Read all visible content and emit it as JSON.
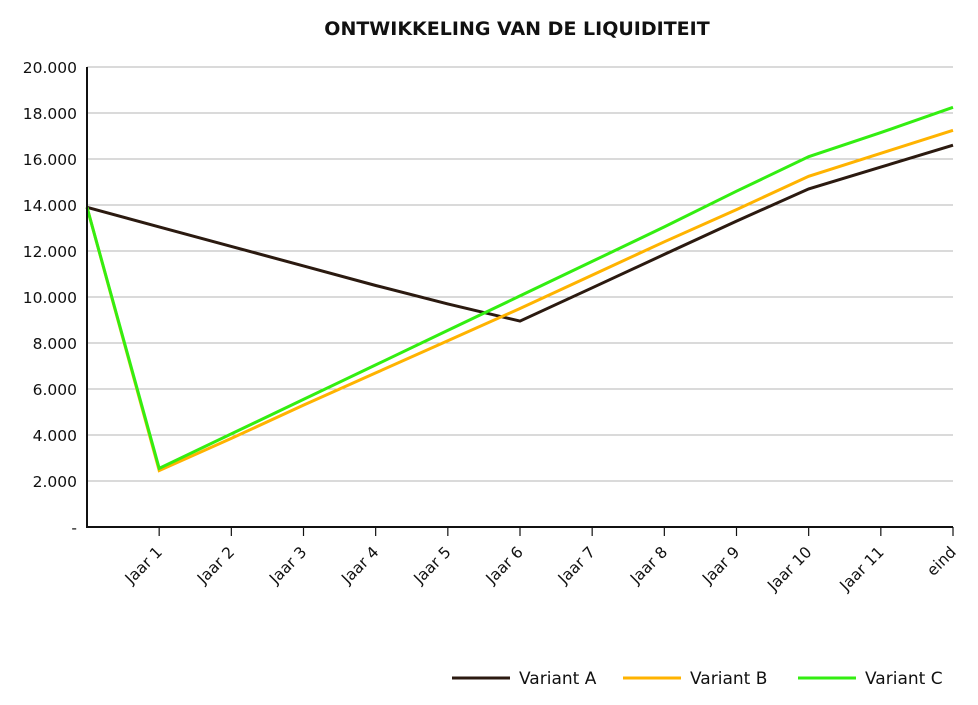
{
  "chart_data": {
    "type": "line",
    "title": "ONTWIKKELING VAN DE LIQUIDITEIT",
    "xlabel": "",
    "ylabel": "",
    "categories": [
      "",
      "Jaar 1",
      "Jaar 2",
      "Jaar 3",
      "Jaar 4",
      "Jaar 5",
      "Jaar 6",
      "Jaar 7",
      "Jaar 8",
      "Jaar 9",
      "Jaar 10",
      "Jaar 11",
      "eind"
    ],
    "ylim": [
      0,
      20000
    ],
    "yticks": [
      0,
      2000,
      4000,
      6000,
      8000,
      10000,
      12000,
      14000,
      16000,
      18000,
      20000
    ],
    "ytick_labels": [
      "-",
      "2.000",
      "4.000",
      "6.000",
      "8.000",
      "10.000",
      "12.000",
      "14.000",
      "16.000",
      "18.000",
      "20.000"
    ],
    "grid": true,
    "legend_position": "bottom-right",
    "series": [
      {
        "name": "Variant A",
        "color": "#2b1a10",
        "values": [
          13900,
          13050,
          12200,
          11350,
          10500,
          9700,
          8950,
          10400,
          11850,
          13300,
          14700,
          15650,
          16600
        ]
      },
      {
        "name": "Variant B",
        "color": "#ffb300",
        "values": [
          13900,
          2450,
          3850,
          5300,
          6700,
          8100,
          9500,
          10950,
          12400,
          13800,
          15250,
          16250,
          17250
        ]
      },
      {
        "name": "Variant C",
        "color": "#33ee11",
        "values": [
          13900,
          2550,
          4050,
          5550,
          7050,
          8550,
          10050,
          11550,
          13050,
          14600,
          16100,
          17150,
          18250
        ]
      }
    ]
  }
}
